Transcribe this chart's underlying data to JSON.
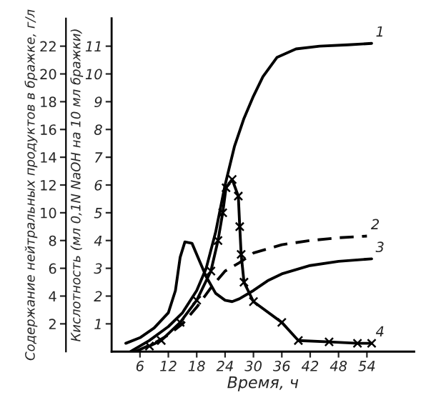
{
  "chart_data": {
    "type": "line",
    "xlabel": "Время, ч",
    "ylabel": "Кислотность (мл 0,1N NaOH на 10 мл бражки)",
    "y2label": "Содержание нейтральных продуктов в бражке, г/л",
    "xlim": [
      0,
      64
    ],
    "xticks": [
      6,
      12,
      18,
      24,
      30,
      36,
      42,
      48,
      54
    ],
    "ylim": [
      0,
      12
    ],
    "yticks": [
      1,
      2,
      3,
      4,
      5,
      6,
      7,
      8,
      9,
      10,
      11
    ],
    "y2lim": [
      0,
      24
    ],
    "y2ticks": [
      2,
      4,
      6,
      8,
      10,
      12,
      14,
      16,
      18,
      20,
      22
    ],
    "grid": false,
    "legend": false,
    "series": [
      {
        "name": "1",
        "color": "#000000",
        "line_style": "solid",
        "marker": "none",
        "x": [
          4,
          8,
          12,
          15,
          18,
          20,
          22,
          24,
          26,
          28,
          30,
          32,
          35,
          39,
          44,
          50,
          55
        ],
        "values": [
          0,
          0.4,
          0.9,
          1.4,
          2.2,
          3.0,
          4.3,
          6.0,
          7.4,
          8.4,
          9.2,
          9.9,
          10.6,
          10.9,
          11.0,
          11.05,
          11.1
        ]
      },
      {
        "name": "2",
        "color": "#000000",
        "line_style": "dashed",
        "marker": "none",
        "x": [
          5,
          9,
          12,
          15,
          18,
          21,
          24,
          27,
          30,
          36,
          42,
          48,
          54
        ],
        "values": [
          0,
          0.3,
          0.6,
          1.0,
          1.6,
          2.3,
          2.9,
          3.2,
          3.55,
          3.85,
          4.0,
          4.1,
          4.16
        ]
      },
      {
        "name": "3",
        "color": "#000000",
        "line_style": "solid",
        "marker": "none",
        "x": [
          3,
          6,
          9,
          12,
          13.5,
          14.5,
          15.5,
          17,
          18.5,
          20,
          22,
          24,
          25.5,
          27,
          30,
          33,
          36,
          42,
          48,
          55
        ],
        "values": [
          0.3,
          0.5,
          0.85,
          1.4,
          2.2,
          3.4,
          3.95,
          3.9,
          3.3,
          2.7,
          2.1,
          1.85,
          1.8,
          1.9,
          2.2,
          2.55,
          2.8,
          3.1,
          3.25,
          3.34
        ]
      },
      {
        "name": "4",
        "color": "#000000",
        "line_style": "solid",
        "marker": "cross",
        "x": [
          8,
          10.5,
          14.5,
          18,
          21,
          22.5,
          23.5,
          24.2,
          25.5,
          26.8,
          27.1,
          27.4,
          28,
          30,
          36,
          39.5,
          46,
          52,
          55
        ],
        "values": [
          0.2,
          0.4,
          1.05,
          1.85,
          2.9,
          4.0,
          5.0,
          5.9,
          6.2,
          5.6,
          4.5,
          3.5,
          2.5,
          1.8,
          1.05,
          0.4,
          0.35,
          0.3,
          0.3
        ]
      }
    ]
  }
}
